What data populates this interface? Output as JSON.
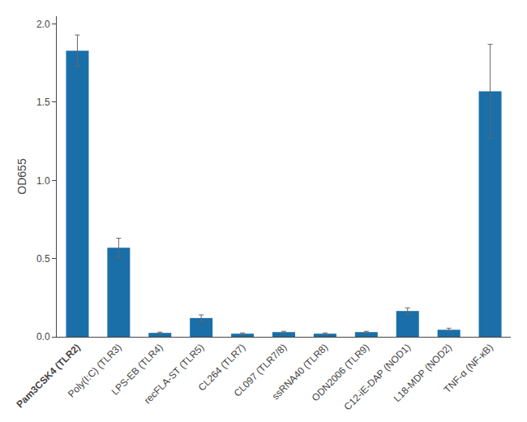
{
  "chart_data": {
    "type": "bar",
    "categories": [
      "Pam3CSK4 (TLR2)",
      "Poly(I:C) (TLR3)",
      "LPS-EB (TLR4)",
      "recFLA-ST (TLR5)",
      "CL264 (TLR7)",
      "CL097 (TLR7/8)",
      "ssRNA40 (TLR8)",
      "ODN2006 (TLR9)",
      "C12-iE-DAP (NOD1)",
      "L18-MDP (NOD2)",
      "TNF-α (NF-κB)"
    ],
    "values": [
      1.83,
      0.57,
      0.025,
      0.12,
      0.02,
      0.03,
      0.02,
      0.03,
      0.165,
      0.045,
      1.57
    ],
    "errors": [
      0.1,
      0.06,
      0.005,
      0.02,
      0.005,
      0.005,
      0.005,
      0.005,
      0.02,
      0.01,
      0.3
    ],
    "color": "#1a6fa8",
    "ylabel": "OD655",
    "ylim": [
      0,
      2.05
    ],
    "yticks": [
      {
        "value": 0,
        "label": "0.0"
      },
      0.5,
      {
        "value": 1.0,
        "label": "1.0"
      },
      1.5,
      {
        "value": 2.0,
        "label": "2.0"
      }
    ],
    "grid": false
  }
}
